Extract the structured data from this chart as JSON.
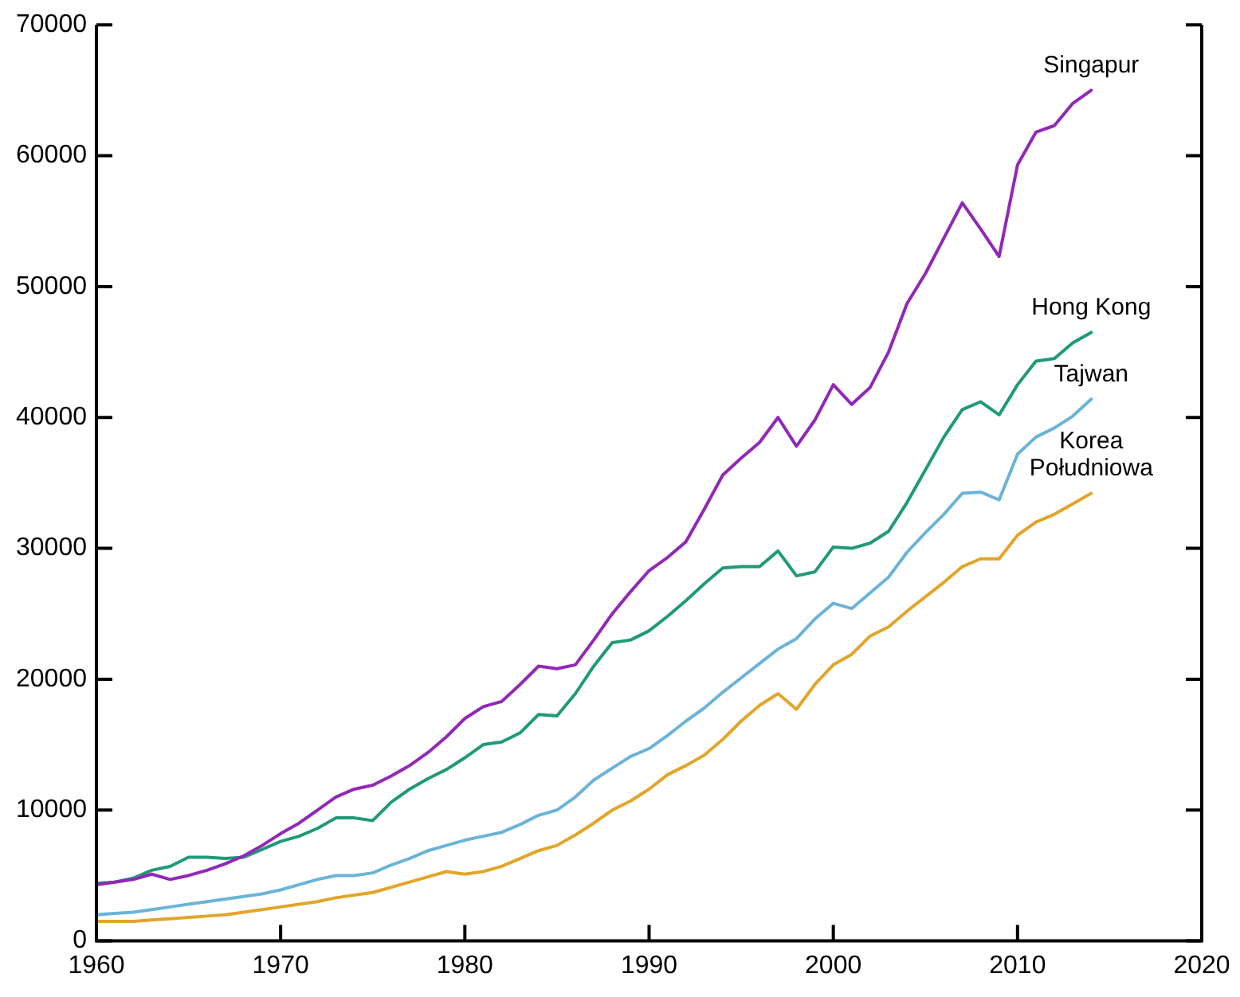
{
  "chart_data": {
    "type": "line",
    "x": [
      1960,
      1961,
      1962,
      1963,
      1964,
      1965,
      1966,
      1967,
      1968,
      1969,
      1970,
      1971,
      1972,
      1973,
      1974,
      1975,
      1976,
      1977,
      1978,
      1979,
      1980,
      1981,
      1982,
      1983,
      1984,
      1985,
      1986,
      1987,
      1988,
      1989,
      1990,
      1991,
      1992,
      1993,
      1994,
      1995,
      1996,
      1997,
      1998,
      1999,
      2000,
      2001,
      2002,
      2003,
      2004,
      2005,
      2006,
      2007,
      2008,
      2009,
      2010,
      2011,
      2012,
      2013,
      2014
    ],
    "xlim": [
      1960,
      2020
    ],
    "xticks": [
      1960,
      1970,
      1980,
      1990,
      2000,
      2010,
      2020
    ],
    "ylim": [
      0,
      70000
    ],
    "yticks": [
      0,
      10000,
      20000,
      30000,
      40000,
      50000,
      60000,
      70000
    ],
    "grid": false,
    "legend": false,
    "marker": "none",
    "line_style": "solid",
    "series": [
      {
        "name": "Singapur",
        "color": "#9128b8",
        "values": [
          4300,
          4500,
          4700,
          5100,
          4700,
          5000,
          5400,
          5900,
          6500,
          7300,
          8200,
          9000,
          10000,
          11000,
          11600,
          11900,
          12600,
          13400,
          14400,
          15600,
          17000,
          17900,
          18300,
          19600,
          21000,
          20800,
          21100,
          23000,
          25000,
          26700,
          28300,
          29300,
          30500,
          33000,
          35600,
          36900,
          38100,
          40000,
          37800,
          39800,
          42500,
          41000,
          42300,
          45000,
          48700,
          51000,
          53700,
          56400,
          54400,
          52300,
          59300,
          61800,
          62300,
          64000,
          65000
        ]
      },
      {
        "name": "Hong Kong",
        "color": "#1f9a78",
        "values": [
          4400,
          4500,
          4800,
          5400,
          5700,
          6400,
          6400,
          6300,
          6400,
          7000,
          7600,
          8000,
          8600,
          9400,
          9400,
          9200,
          10600,
          11600,
          12400,
          13100,
          14000,
          15000,
          15200,
          15900,
          17300,
          17200,
          18900,
          21000,
          22800,
          23000,
          23700,
          24800,
          26000,
          27300,
          28500,
          28600,
          28600,
          29800,
          27900,
          28200,
          30100,
          30000,
          30400,
          31300,
          33500,
          36000,
          38500,
          40600,
          41200,
          40200,
          42500,
          44300,
          44500,
          45700,
          46500
        ]
      },
      {
        "name": "Tajwan",
        "color": "#6ab4d8",
        "values": [
          2000,
          2100,
          2200,
          2400,
          2600,
          2800,
          3000,
          3200,
          3400,
          3600,
          3900,
          4300,
          4700,
          5000,
          5000,
          5200,
          5800,
          6300,
          6900,
          7300,
          7700,
          8000,
          8300,
          8900,
          9600,
          10000,
          11000,
          12300,
          13200,
          14100,
          14700,
          15700,
          16800,
          17800,
          19000,
          20100,
          21200,
          22300,
          23100,
          24600,
          25800,
          25400,
          26600,
          27800,
          29700,
          31200,
          32600,
          34200,
          34300,
          33700,
          37200,
          38500,
          39200,
          40100,
          41400
        ]
      },
      {
        "name": "Korea Południowa",
        "color": "#e2a52a",
        "values": [
          1500,
          1500,
          1500,
          1600,
          1700,
          1800,
          1900,
          2000,
          2200,
          2400,
          2600,
          2800,
          3000,
          3300,
          3500,
          3700,
          4100,
          4500,
          4900,
          5300,
          5100,
          5300,
          5700,
          6300,
          6900,
          7300,
          8100,
          9000,
          10000,
          10700,
          11600,
          12700,
          13400,
          14200,
          15400,
          16800,
          18000,
          18900,
          17700,
          19600,
          21100,
          21900,
          23300,
          24000,
          25200,
          26300,
          27400,
          28600,
          29200,
          29200,
          31000,
          32000,
          32600,
          33400,
          34200
        ]
      }
    ]
  }
}
